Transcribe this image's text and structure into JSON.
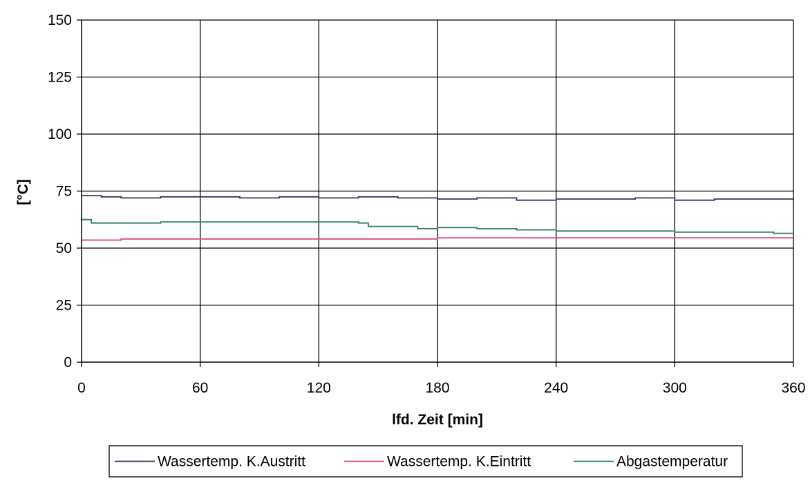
{
  "chart_data": {
    "type": "line",
    "title": "",
    "xlabel": "lfd. Zeit [min]",
    "ylabel": "[°C]",
    "xlim": [
      0,
      360
    ],
    "ylim": [
      0,
      150
    ],
    "x_ticks": [
      0,
      60,
      120,
      180,
      240,
      300,
      360
    ],
    "x_tick_labels": [
      "0",
      "60",
      "120",
      "180",
      "240",
      "300",
      "360"
    ],
    "y_ticks": [
      0,
      25,
      50,
      75,
      100,
      125,
      150
    ],
    "y_tick_labels": [
      "0",
      "25",
      "50",
      "75",
      "100",
      "125",
      "150"
    ],
    "grid": true,
    "legend_position": "bottom",
    "series": [
      {
        "name": "Wassertemp. K.Austritt",
        "color": "#2b3a55",
        "x": [
          0,
          10,
          20,
          40,
          60,
          80,
          100,
          120,
          140,
          160,
          180,
          200,
          220,
          240,
          260,
          280,
          300,
          320,
          340,
          360
        ],
        "y": [
          73,
          72.5,
          72,
          72.5,
          72.5,
          72,
          72.5,
          72,
          72.5,
          72,
          71.5,
          72,
          71,
          71.5,
          71.5,
          72,
          71,
          71.5,
          71.5,
          71
        ]
      },
      {
        "name": "Wassertemp. K.Eintritt",
        "color": "#e0447c",
        "x": [
          0,
          10,
          20,
          30,
          60,
          120,
          180,
          240,
          300,
          360
        ],
        "y": [
          53.5,
          53.5,
          54,
          54,
          54,
          54,
          54.5,
          54.5,
          54.5,
          54.5
        ]
      },
      {
        "name": "Abgastemperatur",
        "color": "#2e7d5e",
        "x": [
          0,
          5,
          20,
          40,
          60,
          80,
          100,
          120,
          140,
          145,
          160,
          170,
          180,
          200,
          220,
          240,
          260,
          280,
          300,
          320,
          340,
          350,
          360
        ],
        "y": [
          62.5,
          61,
          61,
          61.5,
          61.5,
          61.5,
          61.5,
          61.5,
          61,
          59.5,
          59.5,
          58.5,
          59,
          58.5,
          58,
          57.5,
          57.5,
          57.5,
          57,
          57,
          57,
          56.5,
          57
        ]
      }
    ]
  }
}
